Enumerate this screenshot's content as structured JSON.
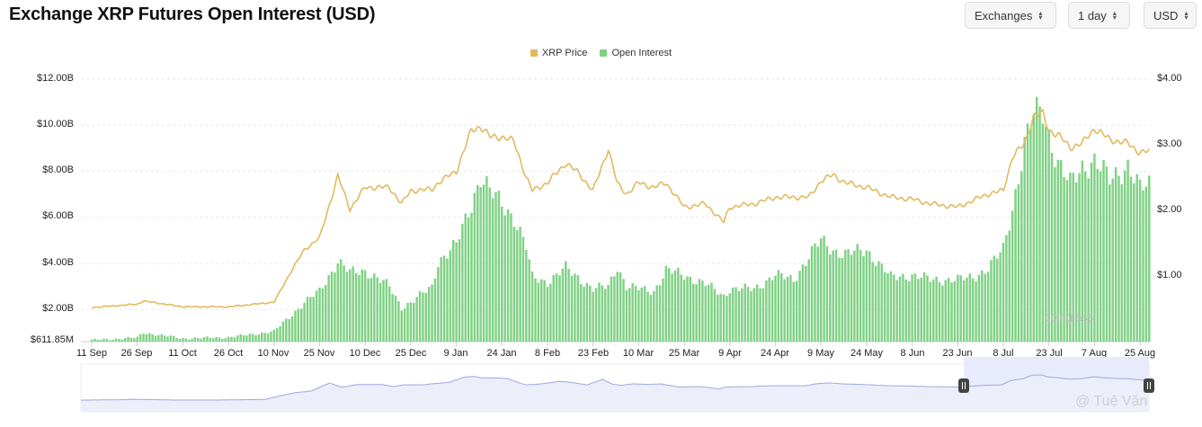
{
  "header": {
    "title": "Exchange XRP Futures Open Interest (USD)"
  },
  "controls": {
    "exchanges": "Exchanges",
    "interval": "1 day",
    "currency": "USD"
  },
  "legend": {
    "price": "XRP Price",
    "oi": "Open Interest"
  },
  "watermarks": {
    "coinglass": "coinglass",
    "author": "@ Tuệ Văn"
  },
  "colors": {
    "price": "#e2b95e",
    "oi": "#7fd184",
    "grid": "#e9e9e9",
    "navigator": "#9fa8de"
  },
  "chart_data": {
    "type": "bar",
    "title": "Exchange XRP Futures Open Interest (USD)",
    "x_ticks": [
      "11 Sep",
      "26 Sep",
      "11 Oct",
      "26 Oct",
      "10 Nov",
      "25 Nov",
      "10 Dec",
      "25 Dec",
      "9 Jan",
      "24 Jan",
      "8 Feb",
      "23 Feb",
      "10 Mar",
      "25 Mar",
      "9 Apr",
      "24 Apr",
      "9 May",
      "24 May",
      "8 Jun",
      "23 Jun",
      "8 Jul",
      "23 Jul",
      "7 Aug",
      "25 Aug"
    ],
    "y_left_ticks": [
      "$12.00B",
      "$10.00B",
      "$8.00B",
      "$6.00B",
      "$4.00B",
      "$2.00B",
      "$611.85M"
    ],
    "y_right_ticks": [
      "$4.00",
      "$3.00",
      "$2.00",
      "$1.00"
    ],
    "ylim_left": [
      0.61185,
      12
    ],
    "ylim_right": [
      0,
      4
    ],
    "grid": true,
    "legend_position": "top-center",
    "series": [
      {
        "name": "Open Interest",
        "axis": "left",
        "unit": "B USD",
        "points": [
          [
            "11 Sep",
            0.68
          ],
          [
            "26 Sep",
            0.78
          ],
          [
            "28 Sep",
            1.0
          ],
          [
            "11 Oct",
            0.75
          ],
          [
            "26 Oct",
            0.8
          ],
          [
            "10 Nov",
            1.05
          ],
          [
            "16 Nov",
            1.8
          ],
          [
            "20 Nov",
            2.3
          ],
          [
            "25 Nov",
            2.8
          ],
          [
            "1 Dec",
            4.1
          ],
          [
            "5 Dec",
            3.6
          ],
          [
            "10 Dec",
            3.7
          ],
          [
            "18 Dec",
            3.0
          ],
          [
            "22 Dec",
            2.1
          ],
          [
            "25 Dec",
            2.3
          ],
          [
            "1 Jan",
            3.0
          ],
          [
            "3 Jan",
            4.1
          ],
          [
            "9 Jan",
            4.8
          ],
          [
            "14 Jan",
            6.6
          ],
          [
            "17 Jan",
            7.8
          ],
          [
            "20 Jan",
            7.1
          ],
          [
            "24 Jan",
            6.6
          ],
          [
            "28 Jan",
            6.0
          ],
          [
            "1 Feb",
            4.7
          ],
          [
            "3 Feb",
            3.4
          ],
          [
            "8 Feb",
            3.2
          ],
          [
            "14 Feb",
            3.8
          ],
          [
            "18 Feb",
            3.4
          ],
          [
            "23 Feb",
            2.9
          ],
          [
            "28 Feb",
            3.0
          ],
          [
            "3 Mar",
            3.9
          ],
          [
            "6 Mar",
            3.0
          ],
          [
            "10 Mar",
            2.9
          ],
          [
            "15 Mar",
            2.8
          ],
          [
            "19 Mar",
            3.7
          ],
          [
            "25 Mar",
            3.5
          ],
          [
            "1 Apr",
            3.1
          ],
          [
            "7 Apr",
            2.6
          ],
          [
            "9 Apr",
            2.9
          ],
          [
            "17 Apr",
            2.9
          ],
          [
            "24 Apr",
            3.5
          ],
          [
            "30 Apr",
            3.3
          ],
          [
            "5 May",
            4.3
          ],
          [
            "9 May",
            5.0
          ],
          [
            "13 May",
            4.6
          ],
          [
            "17 May",
            4.4
          ],
          [
            "24 May",
            4.6
          ],
          [
            "1 Jun",
            3.4
          ],
          [
            "8 Jun",
            3.5
          ],
          [
            "14 Jun",
            3.3
          ],
          [
            "23 Jun",
            3.3
          ],
          [
            "28 Jun",
            3.4
          ],
          [
            "3 Jul",
            3.8
          ],
          [
            "8 Jul",
            4.6
          ],
          [
            "11 Jul",
            6.4
          ],
          [
            "15 Jul",
            9.2
          ],
          [
            "18 Jul",
            10.4
          ],
          [
            "21 Jul",
            10.6
          ],
          [
            "23 Jul",
            9.6
          ],
          [
            "26 Jul",
            8.4
          ],
          [
            "30 Jul",
            7.4
          ],
          [
            "3 Aug",
            8.2
          ],
          [
            "7 Aug",
            8.5
          ],
          [
            "12 Aug",
            7.6
          ],
          [
            "18 Aug",
            8.3
          ],
          [
            "22 Aug",
            7.2
          ],
          [
            "25 Aug",
            7.4
          ]
        ]
      },
      {
        "name": "XRP Price",
        "axis": "right",
        "unit": "USD",
        "points": [
          [
            "11 Sep",
            0.52
          ],
          [
            "26 Sep",
            0.57
          ],
          [
            "28 Sep",
            0.62
          ],
          [
            "11 Oct",
            0.53
          ],
          [
            "26 Oct",
            0.53
          ],
          [
            "10 Nov",
            0.6
          ],
          [
            "16 Nov",
            1.1
          ],
          [
            "20 Nov",
            1.4
          ],
          [
            "25 Nov",
            1.58
          ],
          [
            "1 Dec",
            2.52
          ],
          [
            "5 Dec",
            2.02
          ],
          [
            "10 Dec",
            2.35
          ],
          [
            "18 Dec",
            2.35
          ],
          [
            "22 Dec",
            2.1
          ],
          [
            "25 Dec",
            2.3
          ],
          [
            "1 Jan",
            2.32
          ],
          [
            "3 Jan",
            2.42
          ],
          [
            "9 Jan",
            2.6
          ],
          [
            "14 Jan",
            3.22
          ],
          [
            "17 Jan",
            3.28
          ],
          [
            "20 Jan",
            3.12
          ],
          [
            "24 Jan",
            3.12
          ],
          [
            "28 Jan",
            3.05
          ],
          [
            "1 Feb",
            2.5
          ],
          [
            "3 Feb",
            2.3
          ],
          [
            "8 Feb",
            2.42
          ],
          [
            "14 Feb",
            2.72
          ],
          [
            "18 Feb",
            2.58
          ],
          [
            "23 Feb",
            2.3
          ],
          [
            "28 Feb",
            2.94
          ],
          [
            "3 Mar",
            2.4
          ],
          [
            "6 Mar",
            2.25
          ],
          [
            "10 Mar",
            2.42
          ],
          [
            "15 Mar",
            2.35
          ],
          [
            "19 Mar",
            2.42
          ],
          [
            "25 Mar",
            2.05
          ],
          [
            "1 Apr",
            2.1
          ],
          [
            "7 Apr",
            1.82
          ],
          [
            "9 Apr",
            2.05
          ],
          [
            "17 Apr",
            2.1
          ],
          [
            "24 Apr",
            2.2
          ],
          [
            "30 Apr",
            2.2
          ],
          [
            "5 May",
            2.2
          ],
          [
            "9 May",
            2.45
          ],
          [
            "13 May",
            2.54
          ],
          [
            "17 May",
            2.42
          ],
          [
            "24 May",
            2.35
          ],
          [
            "1 Jun",
            2.2
          ],
          [
            "8 Jun",
            2.17
          ],
          [
            "14 Jun",
            2.1
          ],
          [
            "23 Jun",
            2.05
          ],
          [
            "28 Jun",
            2.15
          ],
          [
            "3 Jul",
            2.25
          ],
          [
            "8 Jul",
            2.3
          ],
          [
            "11 Jul",
            2.82
          ],
          [
            "15 Jul",
            3.01
          ],
          [
            "18 Jul",
            3.45
          ],
          [
            "21 Jul",
            3.47
          ],
          [
            "23 Jul",
            3.22
          ],
          [
            "26 Jul",
            3.15
          ],
          [
            "30 Jul",
            2.96
          ],
          [
            "3 Aug",
            3.02
          ],
          [
            "7 Aug",
            3.25
          ],
          [
            "12 Aug",
            3.08
          ],
          [
            "18 Aug",
            3.02
          ],
          [
            "22 Aug",
            2.88
          ],
          [
            "25 Aug",
            2.9
          ]
        ]
      }
    ]
  }
}
